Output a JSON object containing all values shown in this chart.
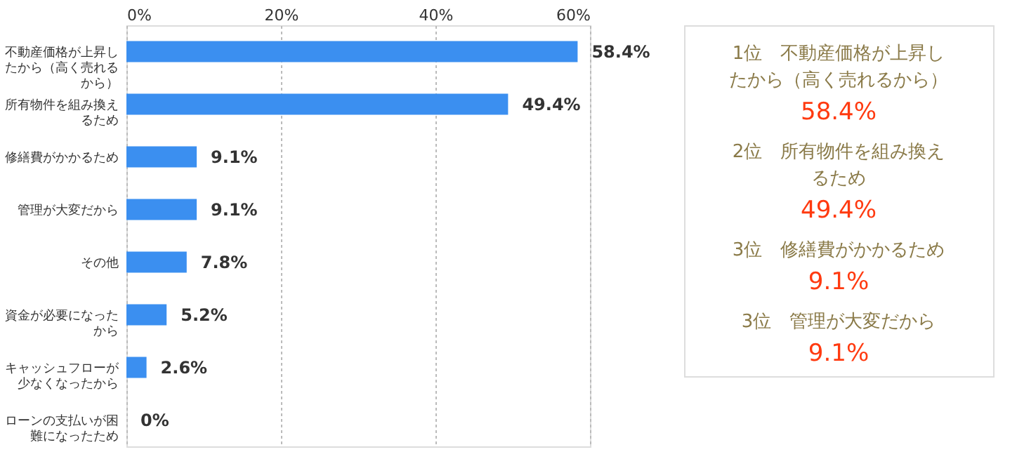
{
  "chart_data": {
    "type": "bar",
    "orientation": "horizontal",
    "categories": [
      "不動産価格が上昇したから（高く売れるから）",
      "所有物件を組み換えるため",
      "修繕費がかかるため",
      "管理が大変だから",
      "その他",
      "資金が必要になったから",
      "キャッシュフローが少なくなったから",
      "ローンの支払いが困難になったため"
    ],
    "values": [
      58.4,
      49.4,
      9.1,
      9.1,
      7.8,
      5.2,
      2.6,
      0
    ],
    "value_labels": [
      "58.4%",
      "49.4%",
      "9.1%",
      "9.1%",
      "7.8%",
      "5.2%",
      "2.6%",
      "0%"
    ],
    "color": "#3b8ff0",
    "xlim": [
      0,
      60
    ],
    "xticks": [
      {
        "value": 0,
        "label": "0%"
      },
      {
        "value": 20,
        "label": "20%"
      },
      {
        "value": 40,
        "label": "40%"
      },
      {
        "value": 60,
        "label": "60%"
      }
    ],
    "grid": "x",
    "annotations": [
      "1位　不動産価格が上昇したから（高く売れるから）",
      "58.4%",
      "2位　所有物件を組み換えるため",
      "49.4%",
      "3位　修繕費がかかるため",
      "9.1%",
      "3位　管理が大変だから",
      "9.1%"
    ]
  }
}
